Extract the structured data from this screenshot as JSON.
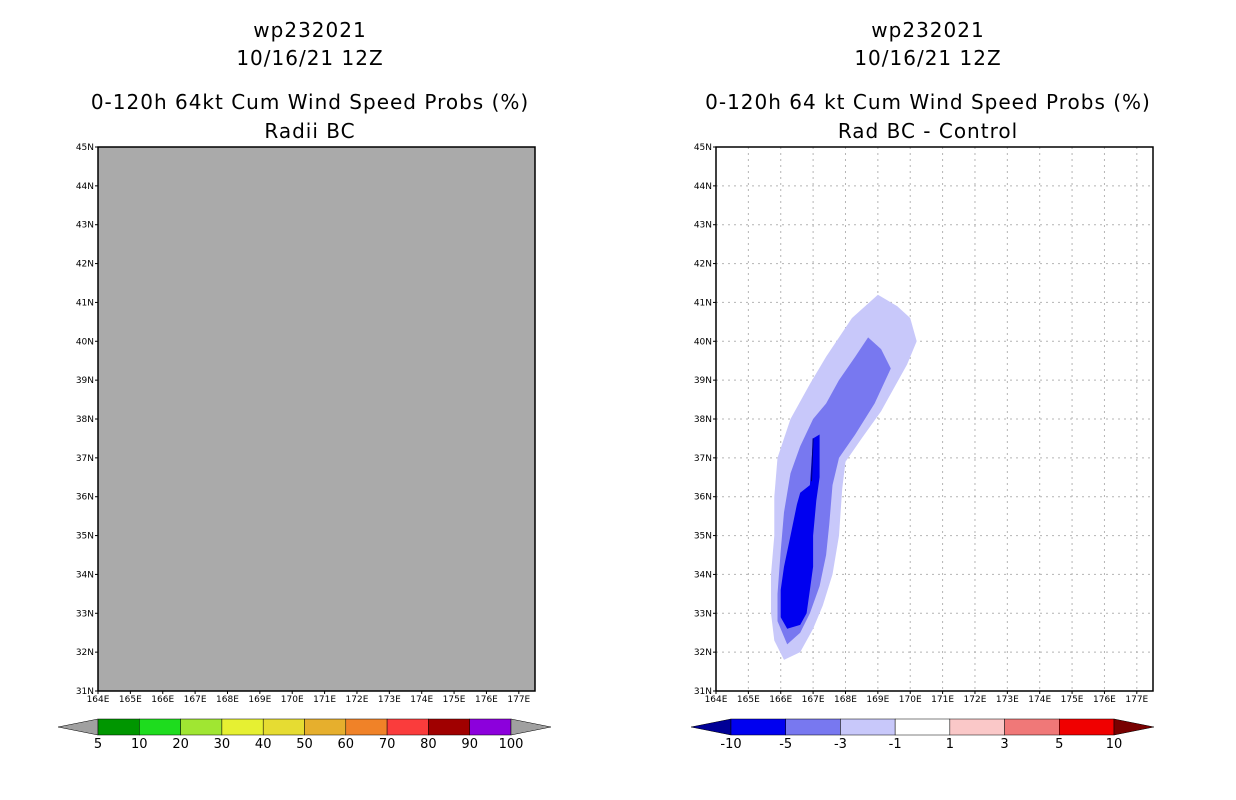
{
  "chart_data": [
    {
      "type": "heatmap",
      "storm_id": "wp232021",
      "date": "10/16/21 12Z",
      "title": "0-120h 64kt Cum Wind Speed Probs (%)",
      "subtitle": "Radii BC",
      "x_ticks": [
        "164E",
        "165E",
        "166E",
        "167E",
        "168E",
        "169E",
        "170E",
        "171E",
        "172E",
        "173E",
        "174E",
        "175E",
        "176E",
        "177E"
      ],
      "y_ticks": [
        "31N",
        "32N",
        "33N",
        "34N",
        "35N",
        "36N",
        "37N",
        "38N",
        "39N",
        "40N",
        "41N",
        "42N",
        "43N",
        "44N",
        "45N"
      ],
      "xlim": [
        164,
        177.5
      ],
      "ylim": [
        31,
        45
      ],
      "grid": false,
      "field": "undefined (no data)",
      "colorbar": {
        "labels": [
          "5",
          "10",
          "20",
          "30",
          "40",
          "50",
          "60",
          "70",
          "80",
          "90",
          "100"
        ],
        "colors": [
          "#009600",
          "#1edc1e",
          "#a0e632",
          "#e6f032",
          "#e6dc32",
          "#e6af2d",
          "#f08228",
          "#fa3c3c",
          "#a00000",
          "#8c00dc"
        ],
        "end_color": "#a0a0a0"
      }
    },
    {
      "type": "heatmap",
      "storm_id": "wp232021",
      "date": "10/16/21 12Z",
      "title": "0-120h 64 kt Cum Wind Speed Probs (%)",
      "subtitle": "Rad BC - Control",
      "x_ticks": [
        "164E",
        "165E",
        "166E",
        "167E",
        "168E",
        "169E",
        "170E",
        "171E",
        "172E",
        "173E",
        "174E",
        "175E",
        "176E",
        "177E"
      ],
      "y_ticks": [
        "31N",
        "32N",
        "33N",
        "34N",
        "35N",
        "36N",
        "37N",
        "38N",
        "39N",
        "40N",
        "41N",
        "42N",
        "43N",
        "44N",
        "45N"
      ],
      "xlim": [
        164,
        177.5
      ],
      "ylim": [
        31,
        45
      ],
      "grid": true,
      "contours": [
        {
          "range": "-3 to -1",
          "color": "#c8c8fa",
          "polygon_lonlat": [
            [
              166.1,
              31.8
            ],
            [
              166.6,
              32.0
            ],
            [
              167.0,
              32.6
            ],
            [
              167.3,
              33.2
            ],
            [
              167.6,
              34.0
            ],
            [
              167.8,
              35.0
            ],
            [
              167.9,
              36.2
            ],
            [
              168.0,
              36.9
            ],
            [
              168.5,
              37.5
            ],
            [
              169.1,
              38.2
            ],
            [
              169.9,
              39.4
            ],
            [
              170.2,
              40.0
            ],
            [
              170.0,
              40.6
            ],
            [
              169.6,
              40.9
            ],
            [
              169.0,
              41.2
            ],
            [
              168.2,
              40.6
            ],
            [
              167.4,
              39.6
            ],
            [
              166.9,
              38.9
            ],
            [
              166.3,
              38.0
            ],
            [
              165.9,
              37.0
            ],
            [
              165.8,
              36.0
            ],
            [
              165.8,
              35.0
            ],
            [
              165.7,
              34.0
            ],
            [
              165.7,
              33.0
            ],
            [
              165.8,
              32.3
            ]
          ]
        },
        {
          "range": "-5 to -3",
          "color": "#7878f0",
          "polygon_lonlat": [
            [
              166.2,
              32.2
            ],
            [
              166.6,
              32.5
            ],
            [
              166.9,
              33.0
            ],
            [
              167.2,
              33.7
            ],
            [
              167.4,
              34.5
            ],
            [
              167.5,
              35.3
            ],
            [
              167.6,
              36.3
            ],
            [
              167.8,
              37.0
            ],
            [
              168.3,
              37.6
            ],
            [
              168.9,
              38.4
            ],
            [
              169.4,
              39.3
            ],
            [
              169.1,
              39.8
            ],
            [
              168.7,
              40.1
            ],
            [
              168.3,
              39.6
            ],
            [
              167.8,
              39.0
            ],
            [
              167.4,
              38.4
            ],
            [
              167.0,
              38.0
            ],
            [
              166.6,
              37.3
            ],
            [
              166.3,
              36.6
            ],
            [
              166.1,
              35.6
            ],
            [
              166.0,
              34.6
            ],
            [
              165.9,
              33.5
            ],
            [
              165.9,
              32.8
            ]
          ]
        },
        {
          "range": "-10 to -5",
          "color": "#0000f0",
          "polygon_lonlat": [
            [
              166.2,
              32.6
            ],
            [
              166.6,
              32.7
            ],
            [
              166.8,
              33.0
            ],
            [
              166.9,
              33.6
            ],
            [
              167.0,
              34.2
            ],
            [
              167.0,
              35.0
            ],
            [
              167.1,
              35.9
            ],
            [
              167.2,
              36.5
            ],
            [
              167.2,
              37.6
            ],
            [
              167.0,
              37.5
            ],
            [
              166.9,
              36.3
            ],
            [
              166.6,
              36.1
            ],
            [
              166.5,
              35.8
            ],
            [
              166.3,
              35.0
            ],
            [
              166.1,
              34.2
            ],
            [
              166.0,
              33.6
            ],
            [
              166.0,
              32.9
            ]
          ]
        }
      ],
      "colorbar": {
        "labels": [
          "-10",
          "-5",
          "-3",
          "-1",
          "1",
          "3",
          "5",
          "10"
        ],
        "colors": [
          "#0000f0",
          "#7878f0",
          "#c8c8fa",
          "#ffffff",
          "#fac8c8",
          "#f07878",
          "#f00000"
        ],
        "start_color": "#000096",
        "end_color": "#780000"
      }
    }
  ]
}
